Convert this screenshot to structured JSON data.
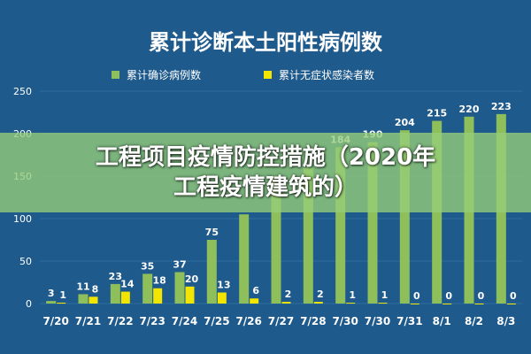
{
  "colors": {
    "background": "#1f5a8c",
    "confirmed": "#8fbf5a",
    "asymptomatic": "#f2e600",
    "text": "#ffffff",
    "grid": "#2f6da1"
  },
  "overlay": {
    "line1": "工程项目疫情防控措施（2020年",
    "line2": "工程疫情建筑的）"
  },
  "chart_data": {
    "type": "bar",
    "title": "累计诊断本土阳性病例数",
    "categories": [
      "7/20",
      "7/21",
      "7/22",
      "7/23",
      "7/24",
      "7/25",
      "7/26",
      "7/27",
      "7/28",
      "7/30",
      "7/30",
      "7/31",
      "8/1",
      "8/2",
      "8/3"
    ],
    "series": [
      {
        "name": "累计确诊病例数",
        "values": [
          3,
          11,
          23,
          35,
          37,
          75,
          105,
          150,
          160,
          184,
          190,
          204,
          215,
          220,
          223
        ]
      },
      {
        "name": "累计无症状感染者数",
        "values": [
          1,
          8,
          14,
          18,
          20,
          13,
          6,
          2,
          2,
          1,
          1,
          0,
          0,
          0,
          0
        ]
      }
    ],
    "data_labels": [
      [
        "3",
        "11",
        "23",
        "35",
        "37",
        "75",
        "",
        "",
        "",
        "184",
        "190",
        "204",
        "215",
        "220",
        "223"
      ],
      [
        "1",
        "8",
        "14",
        "18",
        "20",
        "13",
        "6",
        "2",
        "2",
        "1",
        "1",
        "0",
        "0",
        "0",
        "0"
      ]
    ],
    "ylim": [
      0,
      250
    ],
    "yticks": [
      0,
      50,
      100,
      150,
      200,
      250
    ],
    "grid": true,
    "legend_position": "top"
  }
}
